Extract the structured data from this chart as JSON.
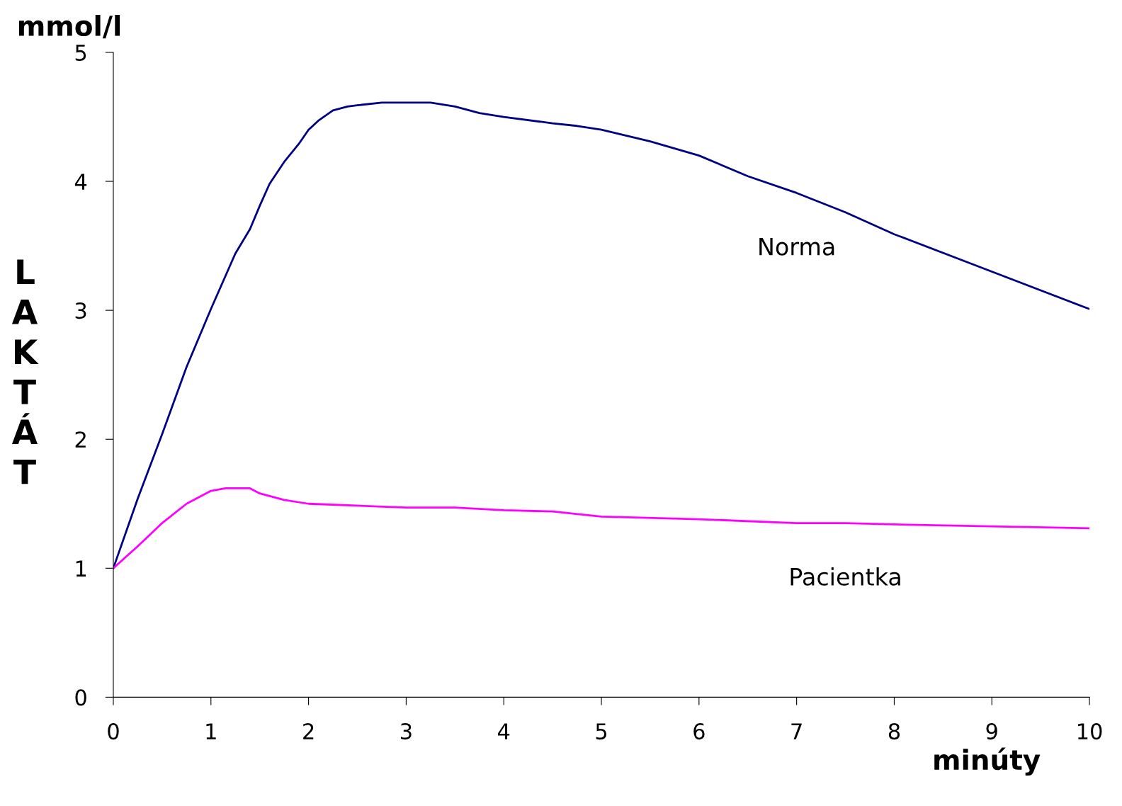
{
  "chart_data": {
    "type": "line",
    "xlabel": "minúty",
    "ylabel": "LAKTÁT",
    "annotations": [
      "mmol/l"
    ],
    "xlim": [
      0,
      10
    ],
    "ylim": [
      0,
      5
    ],
    "xticks": [
      0,
      1,
      2,
      3,
      4,
      5,
      6,
      7,
      8,
      9,
      10
    ],
    "yticks": [
      0,
      1,
      2,
      3,
      4,
      5
    ],
    "grid": false,
    "legend": false,
    "marker": "none",
    "line_style": "solid",
    "series": [
      {
        "name": "Norma",
        "color": "#000080",
        "x": [
          0,
          0.25,
          0.5,
          0.75,
          1,
          1.25,
          1.4,
          1.5,
          1.6,
          1.75,
          1.9,
          2,
          2.1,
          2.25,
          2.4,
          2.5,
          2.75,
          3,
          3.25,
          3.5,
          3.75,
          4,
          4.5,
          4.75,
          5,
          5.5,
          6,
          6.5,
          7,
          7.5,
          8,
          9,
          10
        ],
        "values": [
          1,
          1.54,
          2.04,
          2.56,
          3.01,
          3.44,
          3.63,
          3.81,
          3.98,
          4.15,
          4.29,
          4.4,
          4.47,
          4.55,
          4.58,
          4.59,
          4.61,
          4.61,
          4.61,
          4.58,
          4.53,
          4.5,
          4.45,
          4.43,
          4.4,
          4.31,
          4.2,
          4.04,
          3.91,
          3.76,
          3.59,
          3.3,
          3.01
        ]
      },
      {
        "name": "Pacientka",
        "color": "#ff00ff",
        "x": [
          0,
          0.25,
          0.5,
          0.75,
          1,
          1.15,
          1.4,
          1.5,
          1.75,
          2,
          3,
          3.5,
          4,
          4.5,
          5,
          6,
          7,
          7.5,
          8,
          10
        ],
        "values": [
          1,
          1.17,
          1.35,
          1.5,
          1.6,
          1.62,
          1.62,
          1.58,
          1.53,
          1.5,
          1.47,
          1.47,
          1.45,
          1.44,
          1.4,
          1.38,
          1.35,
          1.35,
          1.34,
          1.31
        ]
      }
    ]
  }
}
